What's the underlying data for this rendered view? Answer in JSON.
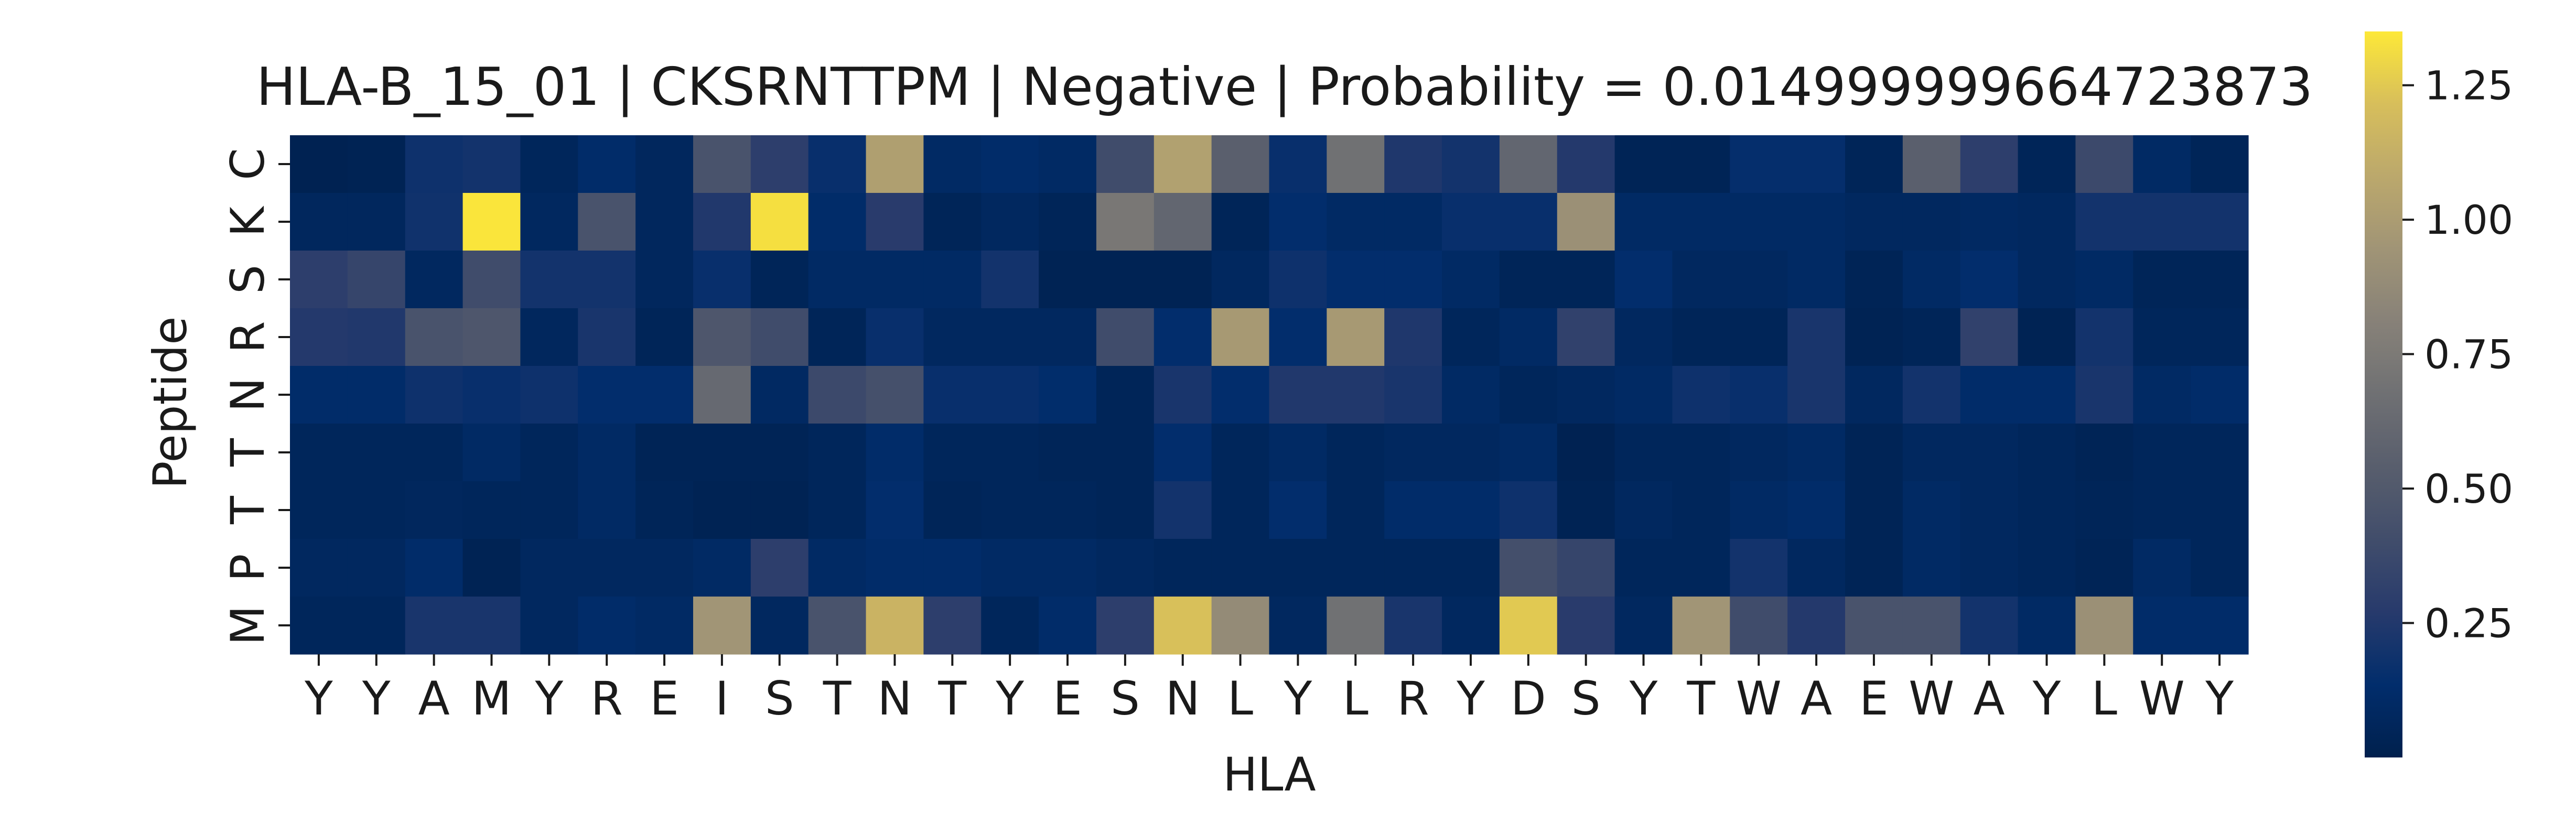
{
  "chart_data": {
    "type": "heatmap",
    "title": "HLA-B_15_01 | CKSRNTTPM | Negative | Probability = 0.014999999664723873",
    "xlabel": "HLA",
    "ylabel": "Peptide",
    "x_categories": [
      "Y",
      "Y",
      "A",
      "M",
      "Y",
      "R",
      "E",
      "I",
      "S",
      "T",
      "N",
      "T",
      "Y",
      "E",
      "S",
      "N",
      "L",
      "Y",
      "L",
      "R",
      "Y",
      "D",
      "S",
      "Y",
      "T",
      "W",
      "A",
      "E",
      "W",
      "A",
      "Y",
      "L",
      "W",
      "Y"
    ],
    "y_categories": [
      "C",
      "K",
      "S",
      "R",
      "N",
      "T",
      "T",
      "P",
      "M"
    ],
    "colormap": "cividis",
    "colorbar": {
      "min": 0.0,
      "max": 1.35,
      "ticks": [
        0.25,
        0.5,
        0.75,
        1.0,
        1.25
      ],
      "tick_labels": [
        "0.25",
        "0.50",
        "0.75",
        "1.00",
        "1.25"
      ]
    },
    "values": [
      [
        0.02,
        0.03,
        0.18,
        0.2,
        0.06,
        0.12,
        0.07,
        0.45,
        0.3,
        0.16,
        1.02,
        0.1,
        0.12,
        0.1,
        0.4,
        1.03,
        0.55,
        0.16,
        0.68,
        0.24,
        0.2,
        0.6,
        0.26,
        0.04,
        0.04,
        0.15,
        0.15,
        0.05,
        0.55,
        0.3,
        0.05,
        0.38,
        0.1,
        0.05
      ],
      [
        0.07,
        0.07,
        0.19,
        1.34,
        0.08,
        0.45,
        0.07,
        0.25,
        1.32,
        0.12,
        0.28,
        0.05,
        0.08,
        0.05,
        0.73,
        0.6,
        0.05,
        0.14,
        0.1,
        0.1,
        0.16,
        0.16,
        0.92,
        0.1,
        0.1,
        0.1,
        0.1,
        0.08,
        0.08,
        0.09,
        0.08,
        0.2,
        0.2,
        0.2
      ],
      [
        0.3,
        0.35,
        0.08,
        0.4,
        0.2,
        0.2,
        0.07,
        0.16,
        0.05,
        0.1,
        0.1,
        0.1,
        0.2,
        0.03,
        0.03,
        0.03,
        0.08,
        0.18,
        0.14,
        0.14,
        0.1,
        0.05,
        0.05,
        0.14,
        0.08,
        0.08,
        0.1,
        0.04,
        0.1,
        0.14,
        0.08,
        0.1,
        0.05,
        0.05
      ],
      [
        0.26,
        0.25,
        0.45,
        0.48,
        0.07,
        0.22,
        0.05,
        0.48,
        0.4,
        0.05,
        0.16,
        0.08,
        0.08,
        0.08,
        0.4,
        0.14,
        0.98,
        0.14,
        0.98,
        0.24,
        0.06,
        0.1,
        0.32,
        0.08,
        0.05,
        0.05,
        0.22,
        0.03,
        0.05,
        0.32,
        0.03,
        0.2,
        0.06,
        0.06
      ],
      [
        0.12,
        0.12,
        0.18,
        0.16,
        0.18,
        0.14,
        0.14,
        0.62,
        0.09,
        0.38,
        0.43,
        0.16,
        0.16,
        0.13,
        0.05,
        0.22,
        0.14,
        0.25,
        0.25,
        0.22,
        0.1,
        0.06,
        0.08,
        0.1,
        0.18,
        0.16,
        0.22,
        0.08,
        0.2,
        0.12,
        0.12,
        0.22,
        0.1,
        0.12
      ],
      [
        0.06,
        0.06,
        0.06,
        0.1,
        0.06,
        0.1,
        0.04,
        0.04,
        0.04,
        0.06,
        0.12,
        0.06,
        0.06,
        0.05,
        0.05,
        0.14,
        0.06,
        0.1,
        0.06,
        0.08,
        0.08,
        0.1,
        0.02,
        0.06,
        0.06,
        0.08,
        0.1,
        0.04,
        0.08,
        0.08,
        0.06,
        0.04,
        0.06,
        0.06
      ],
      [
        0.06,
        0.06,
        0.07,
        0.06,
        0.06,
        0.1,
        0.05,
        0.03,
        0.03,
        0.06,
        0.14,
        0.05,
        0.06,
        0.06,
        0.05,
        0.2,
        0.06,
        0.14,
        0.06,
        0.12,
        0.12,
        0.18,
        0.03,
        0.08,
        0.06,
        0.1,
        0.12,
        0.04,
        0.1,
        0.08,
        0.06,
        0.05,
        0.06,
        0.06
      ],
      [
        0.08,
        0.08,
        0.12,
        0.03,
        0.08,
        0.08,
        0.08,
        0.1,
        0.3,
        0.1,
        0.12,
        0.12,
        0.1,
        0.1,
        0.08,
        0.06,
        0.06,
        0.06,
        0.06,
        0.06,
        0.06,
        0.42,
        0.35,
        0.06,
        0.06,
        0.2,
        0.08,
        0.04,
        0.1,
        0.08,
        0.06,
        0.04,
        0.1,
        0.06
      ],
      [
        0.06,
        0.06,
        0.22,
        0.22,
        0.08,
        0.12,
        0.1,
        0.95,
        0.08,
        0.45,
        1.15,
        0.3,
        0.06,
        0.12,
        0.3,
        1.22,
        0.88,
        0.08,
        0.68,
        0.22,
        0.08,
        1.25,
        0.28,
        0.08,
        0.95,
        0.4,
        0.26,
        0.45,
        0.45,
        0.2,
        0.1,
        0.92,
        0.12,
        0.12
      ]
    ]
  }
}
